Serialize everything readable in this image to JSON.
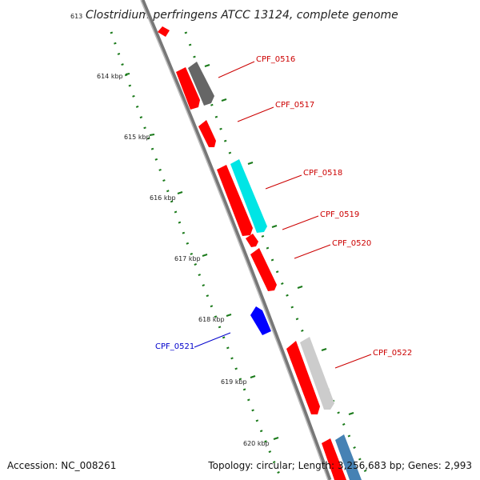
{
  "title": {
    "coordinate": "613",
    "organism": "Clostridium perfringens ATCC 13124, complete genome"
  },
  "footer": {
    "accession": "Accession: NC_008261",
    "summary": "Topology: circular; Length: 3,256,683 bp; Genes: 2,993"
  },
  "ticks": [
    "614 kbp",
    "615 kbp",
    "616 kbp",
    "617 kbp",
    "618 kbp",
    "619 kbp",
    "620 kbp"
  ],
  "genes": [
    {
      "label": "CPF_0516",
      "color": "#d40000",
      "strand": "+"
    },
    {
      "label": "CPF_0517",
      "color": "#d40000",
      "strand": "+"
    },
    {
      "label": "CPF_0518",
      "color": "#d40000",
      "strand": "+"
    },
    {
      "label": "CPF_0519",
      "color": "#d40000",
      "strand": "+"
    },
    {
      "label": "CPF_0520",
      "color": "#d40000",
      "strand": "+"
    },
    {
      "label": "CPF_0521",
      "color": "#0000cc",
      "strand": "-"
    },
    {
      "label": "CPF_0522",
      "color": "#d40000",
      "strand": "+"
    }
  ],
  "colors": {
    "backbone": "#999999",
    "tick_green": "#1a7a1a",
    "cds_red": "#ff0000",
    "cds_gray": "#666666",
    "cds_lightgray": "#cccccc",
    "cds_cyan": "#00e5e5",
    "cds_blue": "#0000ff",
    "cds_steelblue": "#4682b4"
  }
}
